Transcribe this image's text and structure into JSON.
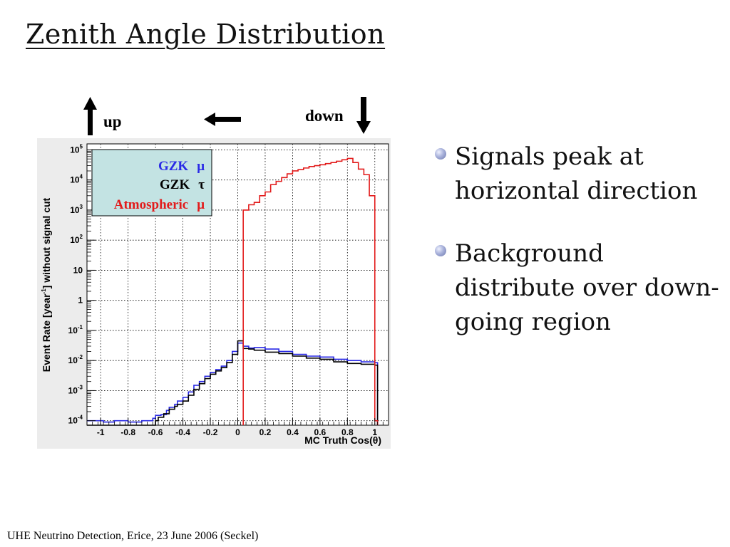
{
  "slide": {
    "title": "Zenith Angle Distribution",
    "footer": "UHE Neutrino Detection, Erice, 23 June 2006 (Seckel)",
    "arrows": {
      "up_label": "up",
      "down_label": "down"
    },
    "bullets": [
      {
        "text": "Signals peak at horizontal direction"
      },
      {
        "text": "Background distribute over down-going region"
      }
    ],
    "colors": {
      "gzk_mu": "#2a2ae6",
      "gzk_tau": "#000000",
      "atmospheric": "#e21b1b",
      "legend_bg": "#c3e3e3"
    }
  },
  "chart_data": {
    "type": "line",
    "xlabel": "MC Truth Cos(θ)",
    "ylabel": "Event Rate [year-1] without signal cut",
    "xlim": [
      -1.1,
      1.1
    ],
    "ylim_log10": [
      -4.15,
      5.2
    ],
    "log_y": true,
    "grid": true,
    "legend_placement": "top-left",
    "x_ticks": [
      "-1",
      "-0.8",
      "-0.6",
      "-0.4",
      "-0.2",
      "0",
      "0.2",
      "0.4",
      "0.6",
      "0.8",
      "1"
    ],
    "x_tick_values": [
      -1,
      -0.8,
      -0.6,
      -0.4,
      -0.2,
      0,
      0.2,
      0.4,
      0.6,
      0.8,
      1
    ],
    "y_ticks": [
      {
        "value": 100000,
        "base": "10",
        "exp": "5"
      },
      {
        "value": 10000,
        "base": "10",
        "exp": "4"
      },
      {
        "value": 1000,
        "base": "10",
        "exp": "3"
      },
      {
        "value": 100,
        "base": "10",
        "exp": "2"
      },
      {
        "value": 10,
        "base": "10",
        "exp": ""
      },
      {
        "value": 1,
        "base": "1",
        "exp": ""
      },
      {
        "value": 0.1,
        "base": "10",
        "exp": "-1"
      },
      {
        "value": 0.01,
        "base": "10",
        "exp": "-2"
      },
      {
        "value": 0.001,
        "base": "10",
        "exp": "-3"
      },
      {
        "value": 0.0001,
        "base": "10",
        "exp": "-4"
      }
    ],
    "series": [
      {
        "name": "GZK μ",
        "legend_name": "GZK",
        "legend_symbol": "μ",
        "color": "#2a2ae6",
        "x": [
          -1.1,
          -0.98,
          -0.9,
          -0.8,
          -0.7,
          -0.64,
          -0.62,
          -0.6,
          -0.56,
          -0.52,
          -0.5,
          -0.46,
          -0.44,
          -0.4,
          -0.36,
          -0.32,
          -0.28,
          -0.24,
          -0.2,
          -0.16,
          -0.12,
          -0.08,
          -0.04,
          0,
          0.04,
          0.08,
          0.12,
          0.2,
          0.3,
          0.4,
          0.5,
          0.6,
          0.7,
          0.8,
          0.9,
          1.0
        ],
        "y": [
          0.0001,
          9e-05,
          0.0001,
          9e-05,
          0.0001,
          0.0001,
          0.00012,
          0.00015,
          0.00016,
          0.00022,
          0.00028,
          0.00035,
          0.00045,
          0.0006,
          0.0009,
          0.0015,
          0.002,
          0.003,
          0.004,
          0.005,
          0.0065,
          0.01,
          0.02,
          0.038,
          0.03,
          0.026,
          0.027,
          0.024,
          0.02,
          0.016,
          0.014,
          0.013,
          0.011,
          0.01,
          0.009,
          0.0085
        ]
      },
      {
        "name": "GZK τ",
        "legend_name": "GZK",
        "legend_symbol": "τ",
        "color": "#000000",
        "x": [
          -1.1,
          -0.9,
          -0.7,
          -0.6,
          -0.58,
          -0.54,
          -0.5,
          -0.46,
          -0.44,
          -0.4,
          -0.36,
          -0.32,
          -0.28,
          -0.24,
          -0.2,
          -0.16,
          -0.12,
          -0.08,
          -0.04,
          0,
          0.04,
          0.08,
          0.12,
          0.2,
          0.3,
          0.4,
          0.5,
          0.6,
          0.7,
          0.8,
          0.9,
          1.0
        ],
        "y": [
          7e-05,
          7e-05,
          7e-05,
          0.0001,
          0.00013,
          0.00017,
          0.00024,
          0.0003,
          0.00035,
          0.00045,
          0.0007,
          0.0011,
          0.0017,
          0.0025,
          0.0035,
          0.0045,
          0.0058,
          0.0085,
          0.016,
          0.045,
          0.025,
          0.024,
          0.022,
          0.019,
          0.017,
          0.014,
          0.012,
          0.011,
          0.009,
          0.008,
          0.0075,
          0.007
        ]
      },
      {
        "name": "Atmospheric μ",
        "legend_name": "Atmospheric",
        "legend_symbol": "μ",
        "color": "#e21b1b",
        "x": [
          0.04,
          0.08,
          0.12,
          0.16,
          0.2,
          0.24,
          0.28,
          0.32,
          0.36,
          0.4,
          0.44,
          0.48,
          0.52,
          0.56,
          0.6,
          0.64,
          0.68,
          0.72,
          0.76,
          0.8,
          0.84,
          0.88,
          0.92,
          0.96,
          1.0
        ],
        "y": [
          1000,
          1500,
          1800,
          3000,
          4000,
          7000,
          9000,
          12000,
          16000,
          20000,
          22000,
          25000,
          28000,
          30000,
          32000,
          35000,
          38000,
          42000,
          47000,
          52000,
          38000,
          23000,
          15000,
          3000,
          0.0001
        ]
      }
    ]
  }
}
